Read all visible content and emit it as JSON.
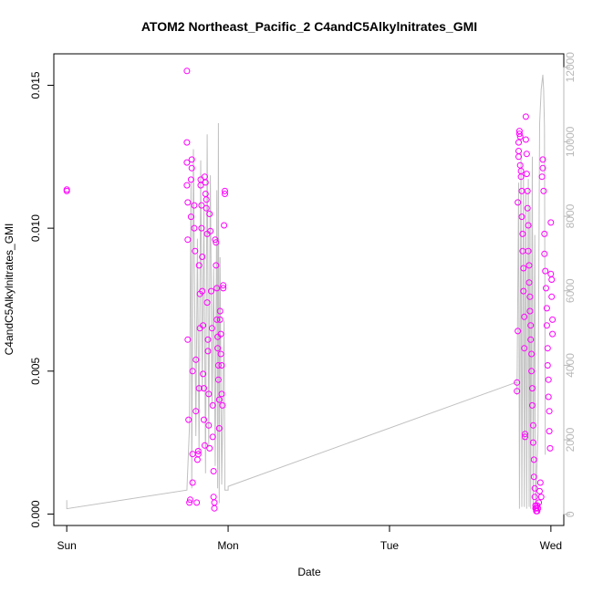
{
  "chart_data": {
    "type": "scatter",
    "title": "ATOM2 Northeast_Pacific_2 C4andC5Alkylnitrates_GMI",
    "xlabel": "Date",
    "ylabel": "C4andC5Alkylnitrates_GMI",
    "x_ticks": [
      {
        "value": 0,
        "label": "Sun"
      },
      {
        "value": 1,
        "label": "Mon"
      },
      {
        "value": 2,
        "label": "Tue"
      },
      {
        "value": 3,
        "label": "Wed"
      }
    ],
    "xlim": [
      -0.08,
      3.08
    ],
    "y_ticks": [
      {
        "value": 0.0,
        "label": "0.000"
      },
      {
        "value": 0.005,
        "label": "0.005"
      },
      {
        "value": 0.01,
        "label": "0.010"
      },
      {
        "value": 0.015,
        "label": "0.015"
      }
    ],
    "ylim": [
      -0.0004,
      0.0161
    ],
    "y2_ticks": [
      {
        "value": 0,
        "label": "0"
      },
      {
        "value": 2000,
        "label": "2000"
      },
      {
        "value": 4000,
        "label": "4000"
      },
      {
        "value": 6000,
        "label": "6000"
      },
      {
        "value": 8000,
        "label": "8000"
      },
      {
        "value": 10000,
        "label": "10000"
      },
      {
        "value": 12000,
        "label": "12000"
      }
    ],
    "y2lim": [
      -300,
      12360
    ],
    "series": [
      {
        "role": "points",
        "color": "#ff00ff",
        "marker": "open-circle",
        "points": [
          [
            0.0,
            0.01135
          ],
          [
            0.0,
            0.0113
          ],
          [
            0.745,
            0.0155
          ],
          [
            0.745,
            0.013
          ],
          [
            0.745,
            0.0123
          ],
          [
            0.745,
            0.0115
          ],
          [
            0.75,
            0.0109
          ],
          [
            0.75,
            0.0096
          ],
          [
            0.75,
            0.0061
          ],
          [
            0.755,
            0.0033
          ],
          [
            0.76,
            0.0004
          ],
          [
            0.765,
            0.0005
          ],
          [
            0.77,
            0.0104
          ],
          [
            0.77,
            0.0117
          ],
          [
            0.775,
            0.0121
          ],
          [
            0.775,
            0.0124
          ],
          [
            0.78,
            0.005
          ],
          [
            0.78,
            0.0021
          ],
          [
            0.78,
            0.0011
          ],
          [
            0.79,
            0.0108
          ],
          [
            0.79,
            0.01
          ],
          [
            0.795,
            0.0092
          ],
          [
            0.8,
            0.0054
          ],
          [
            0.8,
            0.0036
          ],
          [
            0.805,
            0.0004
          ],
          [
            0.81,
            0.0019
          ],
          [
            0.815,
            0.0021
          ],
          [
            0.815,
            0.0022
          ],
          [
            0.82,
            0.0044
          ],
          [
            0.82,
            0.0087
          ],
          [
            0.825,
            0.0065
          ],
          [
            0.825,
            0.0077
          ],
          [
            0.83,
            0.0117
          ],
          [
            0.83,
            0.0115
          ],
          [
            0.835,
            0.0108
          ],
          [
            0.835,
            0.01
          ],
          [
            0.84,
            0.009
          ],
          [
            0.84,
            0.0078
          ],
          [
            0.845,
            0.0066
          ],
          [
            0.845,
            0.0049
          ],
          [
            0.85,
            0.0044
          ],
          [
            0.85,
            0.0033
          ],
          [
            0.855,
            0.0024
          ],
          [
            0.855,
            0.0118
          ],
          [
            0.86,
            0.0116
          ],
          [
            0.86,
            0.0112
          ],
          [
            0.865,
            0.011
          ],
          [
            0.865,
            0.0107
          ],
          [
            0.87,
            0.0098
          ],
          [
            0.87,
            0.0074
          ],
          [
            0.875,
            0.0061
          ],
          [
            0.875,
            0.0057
          ],
          [
            0.88,
            0.0042
          ],
          [
            0.88,
            0.0031
          ],
          [
            0.885,
            0.0023
          ],
          [
            0.885,
            0.0105
          ],
          [
            0.89,
            0.0099
          ],
          [
            0.895,
            0.0078
          ],
          [
            0.9,
            0.0065
          ],
          [
            0.905,
            0.0038
          ],
          [
            0.905,
            0.0027
          ],
          [
            0.91,
            0.0015
          ],
          [
            0.91,
            0.0006
          ],
          [
            0.915,
            0.0002
          ],
          [
            0.915,
            0.0004
          ],
          [
            0.92,
            0.0096
          ],
          [
            0.925,
            0.0095
          ],
          [
            0.925,
            0.0087
          ],
          [
            0.93,
            0.0079
          ],
          [
            0.93,
            0.0068
          ],
          [
            0.935,
            0.0062
          ],
          [
            0.935,
            0.0058
          ],
          [
            0.94,
            0.0052
          ],
          [
            0.94,
            0.0047
          ],
          [
            0.945,
            0.004
          ],
          [
            0.945,
            0.003
          ],
          [
            0.95,
            0.0068
          ],
          [
            0.95,
            0.0071
          ],
          [
            0.955,
            0.0063
          ],
          [
            0.955,
            0.0056
          ],
          [
            0.96,
            0.0052
          ],
          [
            0.96,
            0.0042
          ],
          [
            0.965,
            0.0038
          ],
          [
            0.97,
            0.008
          ],
          [
            0.97,
            0.0079
          ],
          [
            0.975,
            0.0101
          ],
          [
            0.98,
            0.0113
          ],
          [
            0.98,
            0.0112
          ],
          [
            2.79,
            0.0046
          ],
          [
            2.79,
            0.0043
          ],
          [
            2.795,
            0.0064
          ],
          [
            2.795,
            0.0109
          ],
          [
            2.8,
            0.0127
          ],
          [
            2.8,
            0.0125
          ],
          [
            2.8,
            0.013
          ],
          [
            2.805,
            0.0133
          ],
          [
            2.805,
            0.0134
          ],
          [
            2.81,
            0.0132
          ],
          [
            2.81,
            0.0122
          ],
          [
            2.815,
            0.012
          ],
          [
            2.815,
            0.0118
          ],
          [
            2.82,
            0.0113
          ],
          [
            2.82,
            0.0104
          ],
          [
            2.825,
            0.0098
          ],
          [
            2.825,
            0.0092
          ],
          [
            2.83,
            0.0086
          ],
          [
            2.83,
            0.0078
          ],
          [
            2.835,
            0.0069
          ],
          [
            2.835,
            0.0058
          ],
          [
            2.84,
            0.0027
          ],
          [
            2.84,
            0.0028
          ],
          [
            2.845,
            0.0139
          ],
          [
            2.845,
            0.0131
          ],
          [
            2.85,
            0.0126
          ],
          [
            2.85,
            0.0119
          ],
          [
            2.855,
            0.0113
          ],
          [
            2.855,
            0.0107
          ],
          [
            2.86,
            0.0101
          ],
          [
            2.86,
            0.0092
          ],
          [
            2.865,
            0.0087
          ],
          [
            2.865,
            0.0081
          ],
          [
            2.87,
            0.0076
          ],
          [
            2.87,
            0.0071
          ],
          [
            2.875,
            0.0066
          ],
          [
            2.875,
            0.0061
          ],
          [
            2.88,
            0.0056
          ],
          [
            2.88,
            0.005
          ],
          [
            2.885,
            0.0044
          ],
          [
            2.885,
            0.0038
          ],
          [
            2.89,
            0.0031
          ],
          [
            2.89,
            0.0025
          ],
          [
            2.895,
            0.0019
          ],
          [
            2.895,
            0.0013
          ],
          [
            2.9,
            0.0009
          ],
          [
            2.9,
            0.0006
          ],
          [
            2.905,
            0.0003
          ],
          [
            2.905,
            0.0002
          ],
          [
            2.91,
            0.0001
          ],
          [
            2.91,
            0.0002
          ],
          [
            2.915,
            0.0001
          ],
          [
            2.915,
            0.0003
          ],
          [
            2.92,
            0.0002
          ],
          [
            2.925,
            0.0004
          ],
          [
            2.93,
            0.0008
          ],
          [
            2.935,
            0.0011
          ],
          [
            2.94,
            0.0006
          ],
          [
            2.945,
            0.0118
          ],
          [
            2.95,
            0.0124
          ],
          [
            2.95,
            0.0121
          ],
          [
            2.955,
            0.0113
          ],
          [
            2.96,
            0.0098
          ],
          [
            2.96,
            0.0091
          ],
          [
            2.965,
            0.0085
          ],
          [
            2.97,
            0.0079
          ],
          [
            2.975,
            0.0072
          ],
          [
            2.975,
            0.0066
          ],
          [
            2.98,
            0.0058
          ],
          [
            2.98,
            0.0052
          ],
          [
            2.985,
            0.0047
          ],
          [
            2.985,
            0.0041
          ],
          [
            2.99,
            0.0036
          ],
          [
            2.99,
            0.0029
          ],
          [
            2.995,
            0.0023
          ],
          [
            3.0,
            0.0102
          ],
          [
            3.0,
            0.0084
          ],
          [
            3.005,
            0.0082
          ],
          [
            3.005,
            0.0076
          ],
          [
            3.01,
            0.0068
          ],
          [
            3.01,
            0.0063
          ]
        ]
      },
      {
        "role": "line",
        "axis": "right",
        "color": "#c0c0c0",
        "points": [
          [
            0.0,
            380
          ],
          [
            0.0,
            150
          ],
          [
            0.745,
            650
          ],
          [
            0.76,
            2300
          ],
          [
            0.77,
            8900
          ],
          [
            0.775,
            700
          ],
          [
            0.785,
            9800
          ],
          [
            0.8,
            2100
          ],
          [
            0.81,
            7400
          ],
          [
            0.82,
            1600
          ],
          [
            0.83,
            9500
          ],
          [
            0.84,
            3300
          ],
          [
            0.85,
            8200
          ],
          [
            0.86,
            1100
          ],
          [
            0.87,
            10200
          ],
          [
            0.88,
            1800
          ],
          [
            0.89,
            9100
          ],
          [
            0.9,
            2900
          ],
          [
            0.91,
            6600
          ],
          [
            0.92,
            1300
          ],
          [
            0.93,
            8700
          ],
          [
            0.935,
            700
          ],
          [
            0.94,
            10500
          ],
          [
            0.945,
            300
          ],
          [
            0.95,
            6900
          ],
          [
            0.96,
            800
          ],
          [
            0.975,
            5200
          ],
          [
            0.98,
            650
          ],
          [
            1.0,
            650
          ],
          [
            1.0,
            750
          ],
          [
            2.79,
            3550
          ],
          [
            2.79,
            3200
          ],
          [
            2.8,
            8900
          ],
          [
            2.805,
            150
          ],
          [
            2.815,
            9700
          ],
          [
            2.82,
            200
          ],
          [
            2.83,
            9100
          ],
          [
            2.835,
            200
          ],
          [
            2.845,
            8700
          ],
          [
            2.85,
            150
          ],
          [
            2.86,
            9000
          ],
          [
            2.865,
            200
          ],
          [
            2.87,
            8200
          ],
          [
            2.875,
            150
          ],
          [
            2.885,
            9600
          ],
          [
            2.89,
            200
          ],
          [
            2.9,
            7500
          ],
          [
            2.905,
            150
          ],
          [
            2.92,
            2200
          ],
          [
            2.93,
            10500
          ],
          [
            2.94,
            11400
          ],
          [
            2.95,
            11800
          ],
          [
            2.955,
            11400
          ],
          [
            2.96,
            10400
          ],
          [
            2.965,
            1600
          ]
        ]
      }
    ],
    "grid": false,
    "legend": "none"
  }
}
